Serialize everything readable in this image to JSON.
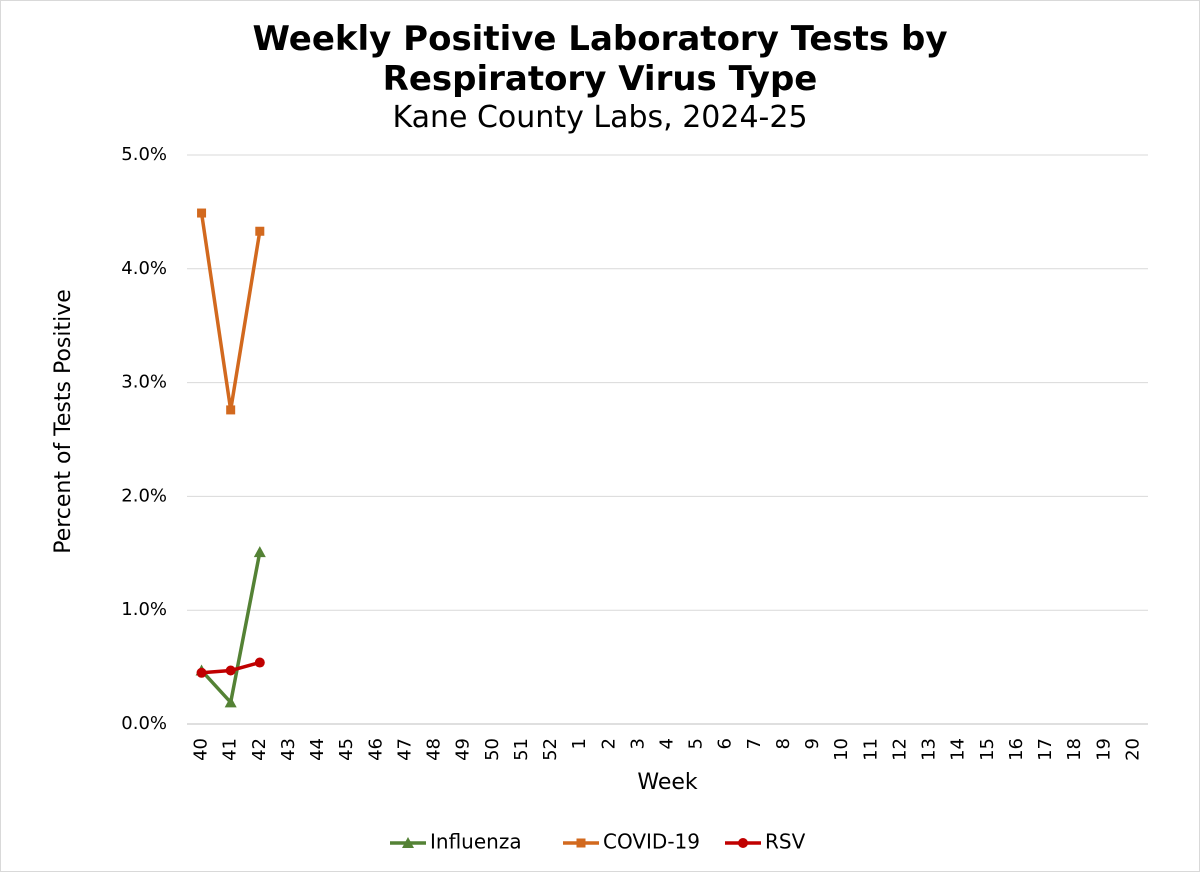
{
  "chart_data": {
    "type": "line",
    "title": "Weekly Positive Laboratory Tests by Respiratory Virus Type",
    "subtitle": "Kane County Labs, 2024-25",
    "x_label": "Week",
    "y_label": "Percent of Tests Positive",
    "categories": [
      "40",
      "41",
      "42",
      "43",
      "44",
      "45",
      "46",
      "47",
      "48",
      "49",
      "50",
      "51",
      "52",
      "1",
      "2",
      "3",
      "4",
      "5",
      "6",
      "7",
      "8",
      "9",
      "10",
      "11",
      "12",
      "13",
      "14",
      "15",
      "16",
      "17",
      "18",
      "19",
      "20"
    ],
    "series": [
      {
        "name": "Influenza",
        "color": "#548235",
        "marker": "triangle",
        "values": [
          0.47,
          0.19,
          1.51,
          null,
          null,
          null,
          null,
          null,
          null,
          null,
          null,
          null,
          null,
          null,
          null,
          null,
          null,
          null,
          null,
          null,
          null,
          null,
          null,
          null,
          null,
          null,
          null,
          null,
          null,
          null,
          null,
          null,
          null
        ]
      },
      {
        "name": "COVID-19",
        "color": "#d2691e",
        "marker": "square",
        "values": [
          4.49,
          2.76,
          4.33,
          null,
          null,
          null,
          null,
          null,
          null,
          null,
          null,
          null,
          null,
          null,
          null,
          null,
          null,
          null,
          null,
          null,
          null,
          null,
          null,
          null,
          null,
          null,
          null,
          null,
          null,
          null,
          null,
          null,
          null
        ]
      },
      {
        "name": "RSV",
        "color": "#c00000",
        "marker": "circle",
        "values": [
          0.45,
          0.47,
          0.54,
          null,
          null,
          null,
          null,
          null,
          null,
          null,
          null,
          null,
          null,
          null,
          null,
          null,
          null,
          null,
          null,
          null,
          null,
          null,
          null,
          null,
          null,
          null,
          null,
          null,
          null,
          null,
          null,
          null,
          null
        ]
      }
    ],
    "ylim": [
      0,
      5
    ],
    "yticks": [
      {
        "value": 0,
        "label": "0.0%"
      },
      {
        "value": 1,
        "label": "1.0%"
      },
      {
        "value": 2,
        "label": "2.0%"
      },
      {
        "value": 3,
        "label": "3.0%"
      },
      {
        "value": 4,
        "label": "4.0%"
      },
      {
        "value": 5,
        "label": "5.0%"
      }
    ],
    "grid": true,
    "legend": "bottom"
  }
}
